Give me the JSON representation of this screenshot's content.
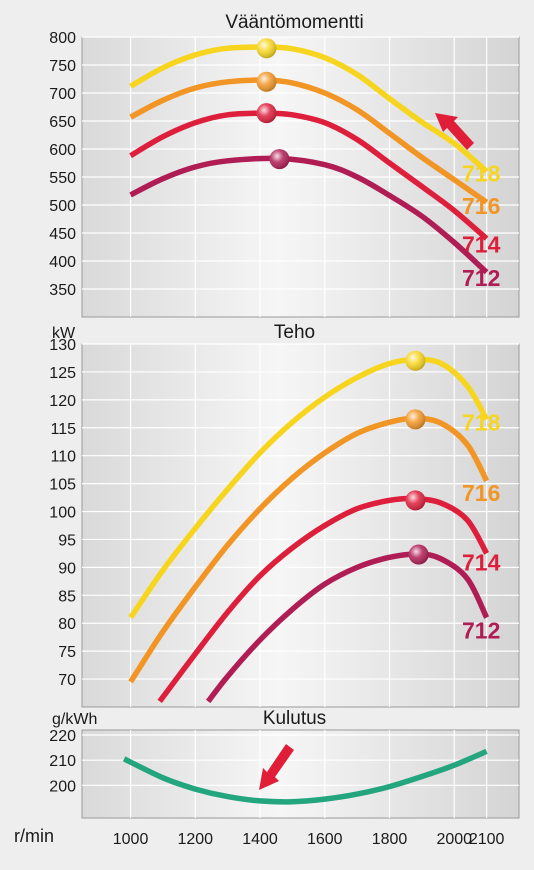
{
  "chart_data": [
    {
      "type": "line",
      "title": "Vääntömomentti",
      "ylabel": "",
      "xlim": [
        850,
        2200
      ],
      "ylim": [
        300,
        800
      ],
      "yticks": [
        350,
        400,
        450,
        500,
        550,
        600,
        650,
        700,
        750,
        800
      ],
      "grid": true,
      "series": [
        {
          "name": "718",
          "color": "#f7d51f",
          "peak": [
            1420,
            780
          ],
          "points": [
            [
              1000,
              712
            ],
            [
              1100,
              745
            ],
            [
              1200,
              768
            ],
            [
              1300,
              780
            ],
            [
              1420,
              782
            ],
            [
              1500,
              779
            ],
            [
              1600,
              763
            ],
            [
              1700,
              733
            ],
            [
              1800,
              690
            ],
            [
              1900,
              648
            ],
            [
              2000,
              610
            ],
            [
              2100,
              560
            ]
          ]
        },
        {
          "name": "716",
          "color": "#f19525",
          "peak": [
            1420,
            720
          ],
          "points": [
            [
              1000,
              657
            ],
            [
              1100,
              687
            ],
            [
              1200,
              709
            ],
            [
              1300,
              720
            ],
            [
              1420,
              723
            ],
            [
              1500,
              718
            ],
            [
              1600,
              700
            ],
            [
              1700,
              670
            ],
            [
              1800,
              628
            ],
            [
              1900,
              585
            ],
            [
              2000,
              545
            ],
            [
              2100,
              505
            ]
          ]
        },
        {
          "name": "714",
          "color": "#dd1f3c",
          "peak": [
            1420,
            664
          ],
          "points": [
            [
              1000,
              588
            ],
            [
              1100,
              622
            ],
            [
              1200,
              647
            ],
            [
              1300,
              661
            ],
            [
              1420,
              664
            ],
            [
              1500,
              661
            ],
            [
              1600,
              647
            ],
            [
              1700,
              617
            ],
            [
              1800,
              575
            ],
            [
              1900,
              533
            ],
            [
              2000,
              490
            ],
            [
              2100,
              440
            ]
          ]
        },
        {
          "name": "712",
          "color": "#b01d55",
          "peak": [
            1460,
            582
          ],
          "points": [
            [
              1000,
              518
            ],
            [
              1100,
              547
            ],
            [
              1200,
              568
            ],
            [
              1300,
              579
            ],
            [
              1460,
              583
            ],
            [
              1600,
              572
            ],
            [
              1700,
              550
            ],
            [
              1800,
              517
            ],
            [
              1900,
              480
            ],
            [
              2000,
              433
            ],
            [
              2100,
              380
            ]
          ]
        }
      ]
    },
    {
      "type": "line",
      "title": "Teho",
      "ylabel": "kW",
      "xlim": [
        850,
        2200
      ],
      "ylim": [
        65,
        130
      ],
      "yticks": [
        70,
        75,
        80,
        85,
        90,
        95,
        100,
        105,
        110,
        115,
        120,
        125,
        130
      ],
      "grid": true,
      "series": [
        {
          "name": "718",
          "color": "#f7d51f",
          "peak": [
            1880,
            127
          ],
          "points": [
            [
              1000,
              81
            ],
            [
              1100,
              89.5
            ],
            [
              1200,
              97
            ],
            [
              1300,
              104
            ],
            [
              1400,
              110.5
            ],
            [
              1500,
              116
            ],
            [
              1600,
              120.5
            ],
            [
              1700,
              124
            ],
            [
              1800,
              126.5
            ],
            [
              1880,
              127.2
            ],
            [
              1960,
              126.5
            ],
            [
              2040,
              122.5
            ],
            [
              2100,
              116.5
            ]
          ]
        },
        {
          "name": "716",
          "color": "#f19525",
          "peak": [
            1880,
            116.5
          ],
          "points": [
            [
              1000,
              69.5
            ],
            [
              1100,
              78.5
            ],
            [
              1200,
              86.5
            ],
            [
              1300,
              94
            ],
            [
              1400,
              100.5
            ],
            [
              1500,
              106
            ],
            [
              1600,
              110.5
            ],
            [
              1700,
              114
            ],
            [
              1800,
              116
            ],
            [
              1880,
              116.7
            ],
            [
              1960,
              115.8
            ],
            [
              2040,
              112
            ],
            [
              2100,
              105.5
            ]
          ]
        },
        {
          "name": "714",
          "color": "#dd1f3c",
          "peak": [
            1880,
            102
          ],
          "points": [
            [
              1090,
              66
            ],
            [
              1200,
              74.5
            ],
            [
              1300,
              82
            ],
            [
              1400,
              88.5
            ],
            [
              1500,
              93.5
            ],
            [
              1600,
              97.5
            ],
            [
              1700,
              100.5
            ],
            [
              1800,
              102
            ],
            [
              1880,
              102.3
            ],
            [
              1960,
              101.5
            ],
            [
              2040,
              98.5
            ],
            [
              2100,
              92.5
            ]
          ]
        },
        {
          "name": "712",
          "color": "#b01d55",
          "peak": [
            1890,
            92.3
          ],
          "points": [
            [
              1240,
              66
            ],
            [
              1300,
              70.5
            ],
            [
              1400,
              77
            ],
            [
              1500,
              82.5
            ],
            [
              1600,
              87
            ],
            [
              1700,
              90
            ],
            [
              1800,
              91.8
            ],
            [
              1890,
              92.4
            ],
            [
              1960,
              91.5
            ],
            [
              2040,
              88
            ],
            [
              2100,
              81
            ]
          ]
        }
      ]
    },
    {
      "type": "line",
      "title": "Kulutus",
      "ylabel": "g/kWh",
      "xlabel": "r/min",
      "xlim": [
        850,
        2200
      ],
      "ylim": [
        187,
        222
      ],
      "yticks": [
        200,
        210,
        220
      ],
      "xticks": [
        1000,
        1200,
        1400,
        1600,
        1800,
        2000,
        2100
      ],
      "grid": true,
      "series": [
        {
          "color": "#23a57e",
          "points": [
            [
              980,
              210.5
            ],
            [
              1100,
              203
            ],
            [
              1200,
              198.5
            ],
            [
              1300,
              195.5
            ],
            [
              1400,
              193.8
            ],
            [
              1500,
              193.5
            ],
            [
              1600,
              194.5
            ],
            [
              1700,
              196.5
            ],
            [
              1800,
              199.5
            ],
            [
              1900,
              203.5
            ],
            [
              2000,
              208
            ],
            [
              2100,
              213.5
            ]
          ]
        }
      ]
    }
  ]
}
